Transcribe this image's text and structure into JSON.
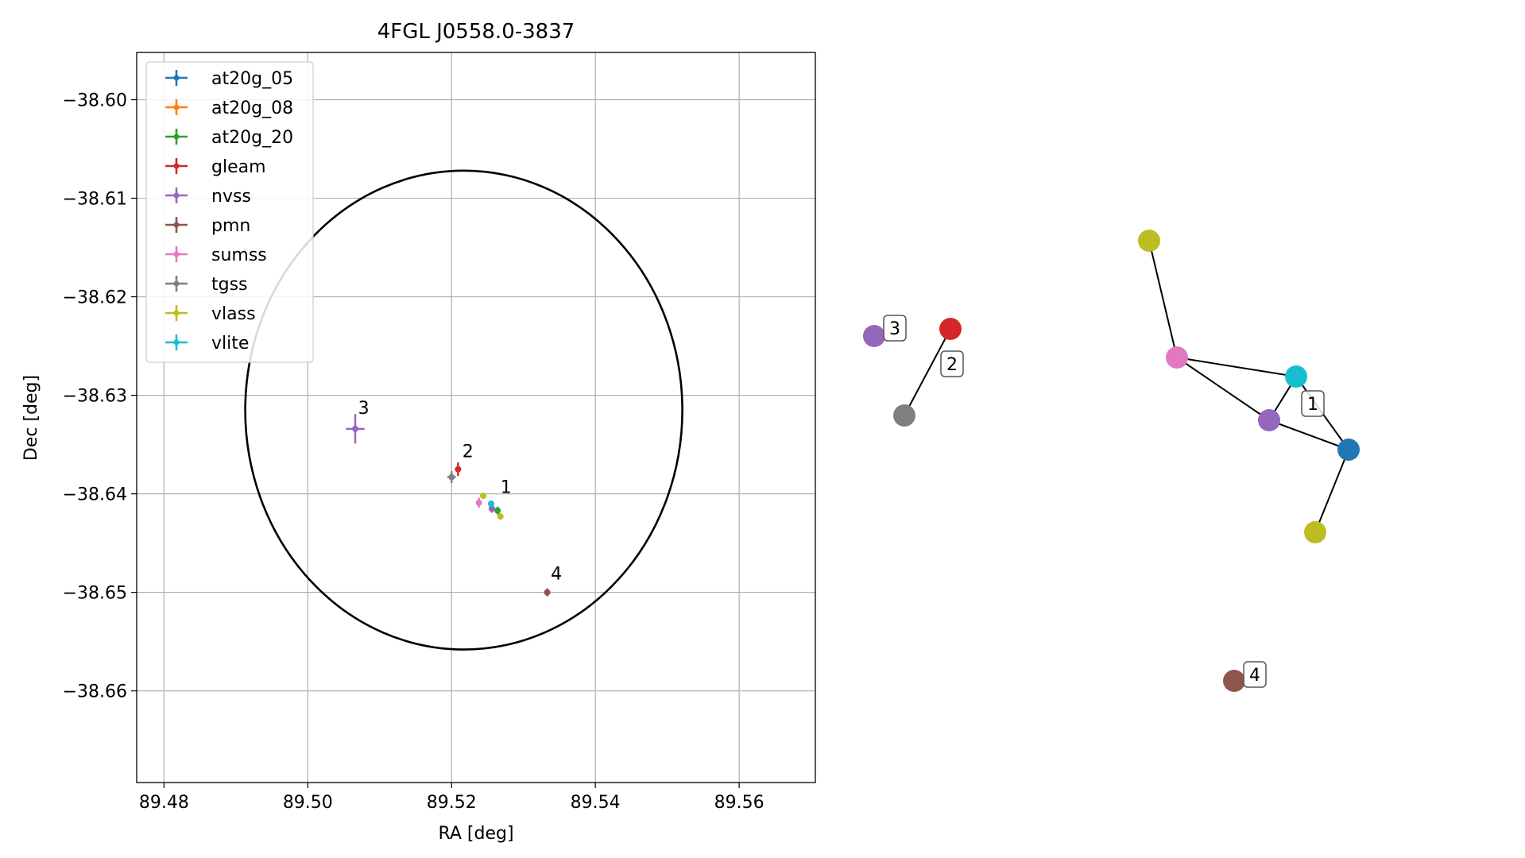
{
  "chart_data": [
    {
      "type": "scatter",
      "title": "4FGL J0558.0-3837",
      "xlabel": "RA [deg]",
      "ylabel": "Dec [deg]",
      "xlim": [
        89.4762,
        89.5706
      ],
      "ylim": [
        -38.6693,
        -38.5952
      ],
      "xticks": [
        89.48,
        89.5,
        89.52,
        89.54,
        89.56
      ],
      "xtick_labels": [
        "89.48",
        "89.50",
        "89.52",
        "89.54",
        "89.56"
      ],
      "yticks": [
        -38.6,
        -38.61,
        -38.62,
        -38.63,
        -38.64,
        -38.65,
        -38.66
      ],
      "ytick_labels": [
        "−38.60",
        "−38.61",
        "−38.62",
        "−38.63",
        "−38.64",
        "−38.65",
        "−38.66"
      ],
      "grid": true,
      "legend_position": "top-left",
      "ellipse": {
        "ra": 89.5217,
        "dec": -38.6315,
        "semi_axis_ra": 0.0304,
        "semi_axis_dec": 0.0243,
        "color": "#000000"
      },
      "series": [
        {
          "name": "at20g_05",
          "color": "#1f77b4",
          "points": [
            {
              "x": 89.5256,
              "y": -38.6415,
              "xerr": 0.0004,
              "yerr": 0.0004
            }
          ]
        },
        {
          "name": "at20g_08",
          "color": "#ff7f0e",
          "points": [
            {
              "x": 89.5256,
              "y": -38.6415,
              "xerr": 0.0004,
              "yerr": 0.0004
            }
          ]
        },
        {
          "name": "at20g_20",
          "color": "#2ca02c",
          "points": [
            {
              "x": 89.5264,
              "y": -38.6417,
              "xerr": 0.0004,
              "yerr": 0.0004
            }
          ]
        },
        {
          "name": "gleam",
          "color": "#d62728",
          "points": [
            {
              "x": 89.5209,
              "y": -38.6375,
              "xerr": 0.0004,
              "yerr": 0.0007
            }
          ]
        },
        {
          "name": "nvss",
          "color": "#9467bd",
          "points": [
            {
              "x": 89.5066,
              "y": -38.6334,
              "xerr": 0.0013,
              "yerr": 0.0015
            },
            {
              "x": 89.5256,
              "y": -38.6415,
              "xerr": 0.0004,
              "yerr": 0.0004
            }
          ]
        },
        {
          "name": "pmn",
          "color": "#8c564b",
          "points": [
            {
              "x": 89.5333,
              "y": -38.65,
              "xerr": 0.0004,
              "yerr": 0.0004
            }
          ]
        },
        {
          "name": "sumss",
          "color": "#e377c2",
          "points": [
            {
              "x": 89.5238,
              "y": -38.6409,
              "xerr": 0.0004,
              "yerr": 0.0005
            }
          ]
        },
        {
          "name": "tgss",
          "color": "#7f7f7f",
          "points": [
            {
              "x": 89.52,
              "y": -38.6383,
              "xerr": 0.0006,
              "yerr": 0.0006
            }
          ]
        },
        {
          "name": "vlass",
          "color": "#bcbd22",
          "points": [
            {
              "x": 89.5244,
              "y": -38.6402,
              "xerr": 0.0004,
              "yerr": 0.0003
            },
            {
              "x": 89.5268,
              "y": -38.6423,
              "xerr": 0.0004,
              "yerr": 0.0003
            }
          ]
        },
        {
          "name": "vlite",
          "color": "#17becf",
          "points": [
            {
              "x": 89.5255,
              "y": -38.641,
              "xerr": 0.0003,
              "yerr": 0.0003
            }
          ]
        }
      ],
      "annotations": [
        {
          "text": "1",
          "x": 89.5268,
          "y": -38.6399
        },
        {
          "text": "2",
          "x": 89.5215,
          "y": -38.6363
        },
        {
          "text": "3",
          "x": 89.507,
          "y": -38.6319
        },
        {
          "text": "4",
          "x": 89.5338,
          "y": -38.6487
        }
      ]
    },
    {
      "type": "network",
      "nodes": [
        {
          "id": "vlass_a",
          "color": "#bcbd22"
        },
        {
          "id": "sumss",
          "color": "#e377c2"
        },
        {
          "id": "vlite",
          "color": "#17becf"
        },
        {
          "id": "nvss_a",
          "color": "#9467bd"
        },
        {
          "id": "at20g",
          "color": "#1f77b4"
        },
        {
          "id": "vlass_b",
          "color": "#bcbd22"
        },
        {
          "id": "gleam",
          "color": "#d62728"
        },
        {
          "id": "tgss",
          "color": "#7f7f7f"
        },
        {
          "id": "nvss_b",
          "color": "#9467bd"
        },
        {
          "id": "pmn",
          "color": "#8c564b"
        }
      ],
      "edges": [
        [
          "vlass_a",
          "sumss"
        ],
        [
          "sumss",
          "vlite"
        ],
        [
          "sumss",
          "nvss_a"
        ],
        [
          "vlite",
          "at20g"
        ],
        [
          "vlite",
          "nvss_a"
        ],
        [
          "nvss_a",
          "at20g"
        ],
        [
          "at20g",
          "vlass_b"
        ],
        [
          "gleam",
          "tgss"
        ]
      ],
      "labels": [
        {
          "text": "1",
          "node": "vlite"
        },
        {
          "text": "2",
          "node": "gleam"
        },
        {
          "text": "3",
          "node": "nvss_b"
        },
        {
          "text": "4",
          "node": "pmn"
        }
      ]
    }
  ]
}
